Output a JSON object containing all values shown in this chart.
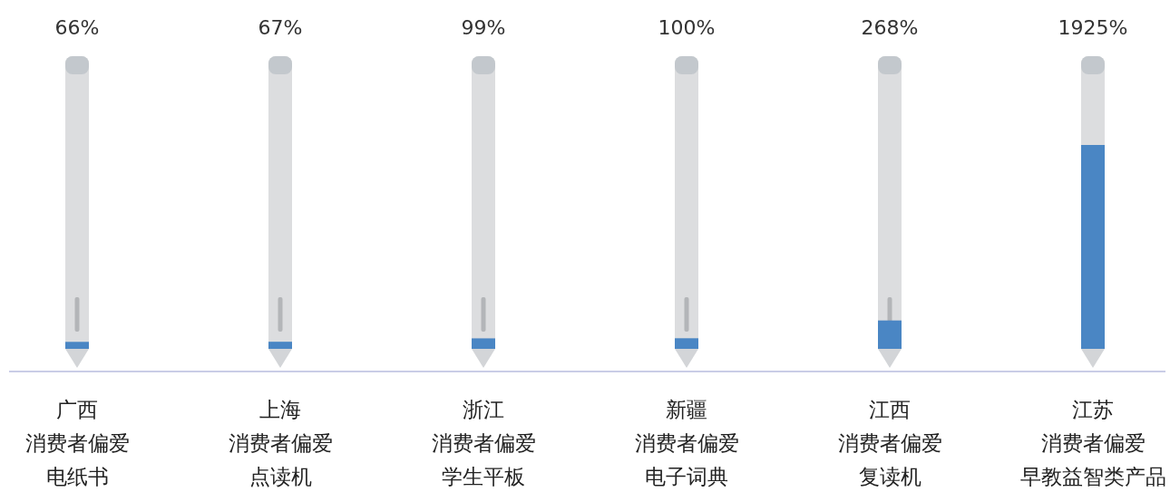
{
  "chart_data": {
    "type": "bar",
    "categories": [
      "广西消费者偏爱电纸书",
      "上海消费者偏爱点读机",
      "浙江消费者偏爱学生平板",
      "新疆消费者偏爱电子词典",
      "江西消费者偏爱复读机",
      "江苏消费者偏爱早教益智类产品"
    ],
    "values": [
      66,
      67,
      99,
      100,
      268,
      1925
    ],
    "value_labels": [
      "66%",
      "67%",
      "99%",
      "100%",
      "268%",
      "1925%"
    ],
    "color": "#4a86c4"
  }
}
